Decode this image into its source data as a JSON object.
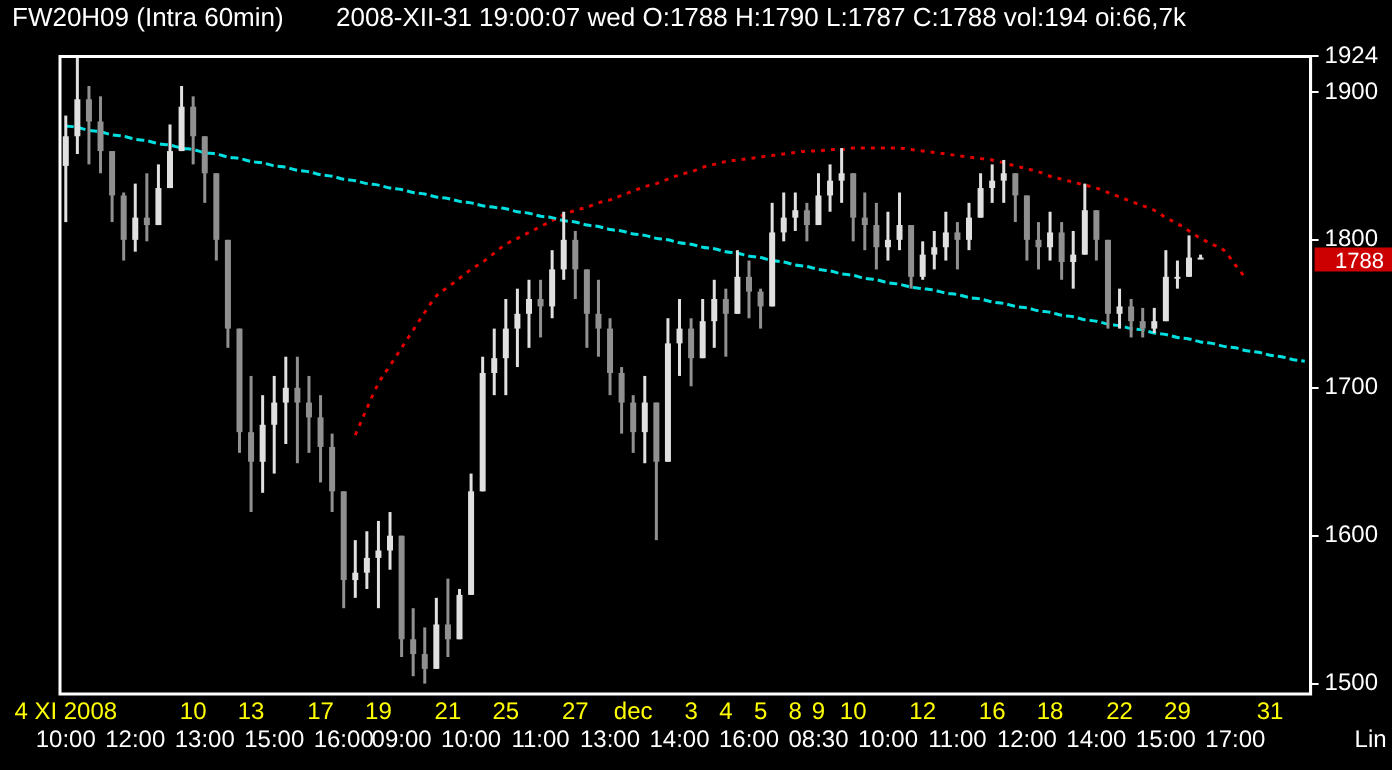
{
  "chart_data": {
    "type": "candlestick",
    "title": "FW20H09 (Intra 60min)",
    "subtitle": "2008-XII-31 19:00:07 wed O:1788 H:1790 L:1787 C:1788 vol:194 oi:66,7k",
    "categories": [
      "4 XI 2008\n10:00",
      null,
      null,
      null,
      null,
      null,
      "\n12:00",
      null,
      null,
      null,
      null,
      "10\n",
      "\n13:00",
      null,
      null,
      null,
      "13\n",
      null,
      "\n15:00",
      null,
      null,
      null,
      "17\n",
      null,
      "\n16:00",
      null,
      null,
      "19\n",
      null,
      "\n09:00",
      null,
      null,
      null,
      "21\n",
      null,
      "\n10:00",
      null,
      null,
      "25\n",
      null,
      null,
      "\n11:00",
      null,
      null,
      "27\n",
      null,
      null,
      "\n13:00",
      null,
      "dec\n",
      null,
      null,
      null,
      "\n14:00",
      "3\n",
      null,
      null,
      "4\n",
      null,
      "\n16:00",
      "5\n",
      null,
      null,
      "8\n",
      null,
      "9\n08:30",
      null,
      null,
      "10\n",
      null,
      null,
      "\n10:00",
      null,
      null,
      "12\n",
      null,
      null,
      "\n11:00",
      null,
      null,
      "16\n",
      null,
      null,
      "\n12:00",
      null,
      "18\n",
      null,
      null,
      null,
      "\n14:00",
      null,
      "22\n",
      null,
      null,
      null,
      "\n15:00",
      "29\n",
      null,
      null,
      null,
      null,
      "\n17:00",
      null,
      null,
      "31\n",
      null,
      null,
      null
    ],
    "colors": [
      "#e0e0e0",
      "#e0e0e0",
      "#909090",
      "#909090",
      "#909090",
      "#909090",
      "#e0e0e0",
      "#909090",
      "#e0e0e0",
      "#e0e0e0",
      "#e0e0e0",
      "#909090",
      "#909090",
      "#909090",
      "#909090",
      "#909090",
      "#909090",
      "#e0e0e0",
      "#e0e0e0",
      "#e0e0e0",
      "#909090",
      "#909090",
      "#909090",
      "#909090",
      "#909090",
      "#e0e0e0",
      "#e0e0e0",
      "#e0e0e0",
      "#e0e0e0",
      "#909090",
      "#909090",
      "#909090",
      "#e0e0e0",
      "#909090",
      "#e0e0e0",
      "#e0e0e0",
      "#e0e0e0",
      "#e0e0e0",
      "#e0e0e0",
      "#e0e0e0",
      "#e0e0e0",
      "#909090",
      "#e0e0e0",
      "#e0e0e0",
      "#909090",
      "#909090",
      "#909090",
      "#909090",
      "#909090",
      "#909090",
      "#e0e0e0",
      "#909090",
      "#e0e0e0",
      "#e0e0e0",
      "#909090",
      "#e0e0e0",
      "#e0e0e0",
      "#909090",
      "#e0e0e0",
      "#909090",
      "#909090",
      "#e0e0e0",
      "#e0e0e0",
      "#e0e0e0",
      "#909090",
      "#e0e0e0",
      "#e0e0e0",
      "#e0e0e0",
      "#909090",
      "#909090",
      "#909090",
      "#e0e0e0",
      "#e0e0e0",
      "#909090",
      "#e0e0e0",
      "#e0e0e0",
      "#e0e0e0",
      "#909090",
      "#e0e0e0",
      "#e0e0e0",
      "#e0e0e0",
      "#e0e0e0",
      "#909090",
      "#909090",
      "#909090",
      "#e0e0e0",
      "#909090",
      "#e0e0e0",
      "#e0e0e0",
      "#909090",
      "#909090",
      "#e0e0e0",
      "#909090",
      "#909090",
      "#e0e0e0",
      "#e0e0e0",
      "#e0e0e0",
      "#e0e0e0",
      "#e0e0e0",
      null,
      null,
      null,
      null,
      null,
      null,
      null,
      null,
      null
    ],
    "ohlc": [
      [
        1850,
        1884,
        1812,
        1870
      ],
      [
        1870,
        1924,
        1858,
        1895
      ],
      [
        1895,
        1904,
        1851,
        1880
      ],
      [
        1880,
        1897,
        1845,
        1860
      ],
      [
        1860,
        1860,
        1812,
        1830
      ],
      [
        1830,
        1832,
        1786,
        1800
      ],
      [
        1800,
        1838,
        1792,
        1815
      ],
      [
        1815,
        1845,
        1799,
        1810
      ],
      [
        1810,
        1851,
        1810,
        1835
      ],
      [
        1835,
        1878,
        1835,
        1860
      ],
      [
        1860,
        1904,
        1860,
        1890
      ],
      [
        1890,
        1897,
        1851,
        1870
      ],
      [
        1870,
        1870,
        1825,
        1845
      ],
      [
        1845,
        1845,
        1786,
        1800
      ],
      [
        1800,
        1800,
        1727,
        1740
      ],
      [
        1740,
        1740,
        1656,
        1670
      ],
      [
        1670,
        1708,
        1616,
        1650
      ],
      [
        1650,
        1695,
        1629,
        1675
      ],
      [
        1675,
        1708,
        1642,
        1690
      ],
      [
        1690,
        1721,
        1662,
        1700
      ],
      [
        1700,
        1721,
        1649,
        1690
      ],
      [
        1690,
        1708,
        1656,
        1680
      ],
      [
        1680,
        1695,
        1636,
        1660
      ],
      [
        1660,
        1669,
        1616,
        1630
      ],
      [
        1630,
        1630,
        1551,
        1570
      ],
      [
        1570,
        1597,
        1558,
        1575
      ],
      [
        1575,
        1603,
        1564,
        1585
      ],
      [
        1585,
        1610,
        1551,
        1590
      ],
      [
        1590,
        1616,
        1577,
        1600
      ],
      [
        1600,
        1600,
        1518,
        1530
      ],
      [
        1530,
        1551,
        1505,
        1520
      ],
      [
        1520,
        1538,
        1500,
        1510
      ],
      [
        1510,
        1558,
        1510,
        1540
      ],
      [
        1540,
        1571,
        1518,
        1530
      ],
      [
        1530,
        1564,
        1530,
        1560
      ],
      [
        1560,
        1642,
        1560,
        1630
      ],
      [
        1630,
        1721,
        1630,
        1710
      ],
      [
        1710,
        1740,
        1695,
        1720
      ],
      [
        1720,
        1760,
        1695,
        1740
      ],
      [
        1740,
        1767,
        1714,
        1750
      ],
      [
        1750,
        1773,
        1727,
        1760
      ],
      [
        1760,
        1773,
        1734,
        1755
      ],
      [
        1755,
        1793,
        1747,
        1780
      ],
      [
        1780,
        1819,
        1773,
        1800
      ],
      [
        1800,
        1806,
        1760,
        1780
      ],
      [
        1780,
        1780,
        1727,
        1750
      ],
      [
        1750,
        1773,
        1721,
        1740
      ],
      [
        1740,
        1747,
        1695,
        1710
      ],
      [
        1710,
        1714,
        1669,
        1690
      ],
      [
        1690,
        1695,
        1656,
        1670
      ],
      [
        1670,
        1708,
        1649,
        1690
      ],
      [
        1690,
        1690,
        1597,
        1650
      ],
      [
        1650,
        1747,
        1650,
        1730
      ],
      [
        1730,
        1760,
        1708,
        1740
      ],
      [
        1740,
        1747,
        1701,
        1720
      ],
      [
        1720,
        1760,
        1720,
        1745
      ],
      [
        1745,
        1773,
        1727,
        1760
      ],
      [
        1760,
        1767,
        1721,
        1750
      ],
      [
        1750,
        1793,
        1750,
        1775
      ],
      [
        1775,
        1786,
        1747,
        1765
      ],
      [
        1765,
        1767,
        1740,
        1755
      ],
      [
        1755,
        1825,
        1755,
        1805
      ],
      [
        1805,
        1832,
        1799,
        1815
      ],
      [
        1815,
        1832,
        1806,
        1820
      ],
      [
        1820,
        1825,
        1799,
        1810
      ],
      [
        1810,
        1845,
        1810,
        1830
      ],
      [
        1830,
        1851,
        1819,
        1840
      ],
      [
        1840,
        1862,
        1825,
        1845
      ],
      [
        1845,
        1845,
        1799,
        1815
      ],
      [
        1815,
        1832,
        1793,
        1810
      ],
      [
        1810,
        1825,
        1780,
        1795
      ],
      [
        1795,
        1819,
        1786,
        1800
      ],
      [
        1800,
        1832,
        1793,
        1810
      ],
      [
        1810,
        1810,
        1767,
        1775
      ],
      [
        1775,
        1799,
        1773,
        1790
      ],
      [
        1790,
        1806,
        1780,
        1795
      ],
      [
        1795,
        1819,
        1786,
        1805
      ],
      [
        1805,
        1812,
        1780,
        1800
      ],
      [
        1800,
        1825,
        1793,
        1815
      ],
      [
        1815,
        1845,
        1815,
        1835
      ],
      [
        1835,
        1851,
        1825,
        1840
      ],
      [
        1840,
        1854,
        1825,
        1845
      ],
      [
        1845,
        1845,
        1812,
        1830
      ],
      [
        1830,
        1830,
        1786,
        1800
      ],
      [
        1800,
        1812,
        1780,
        1795
      ],
      [
        1795,
        1819,
        1786,
        1805
      ],
      [
        1805,
        1812,
        1773,
        1785
      ],
      [
        1785,
        1806,
        1767,
        1790
      ],
      [
        1790,
        1838,
        1790,
        1820
      ],
      [
        1820,
        1820,
        1786,
        1800
      ],
      [
        1800,
        1800,
        1740,
        1750
      ],
      [
        1750,
        1767,
        1740,
        1755
      ],
      [
        1755,
        1760,
        1734,
        1745
      ],
      [
        1745,
        1754,
        1734,
        1740
      ],
      [
        1740,
        1754,
        1737,
        1745
      ],
      [
        1745,
        1793,
        1745,
        1775
      ],
      [
        1775,
        1786,
        1767,
        1775
      ],
      [
        1775,
        1803,
        1775,
        1788
      ],
      [
        1788,
        1790,
        1787,
        1788
      ],
      null,
      null,
      null,
      null,
      null,
      null,
      null,
      null,
      null
    ],
    "series": [
      {
        "type": "line",
        "color": "#00e0e0",
        "line_style": "dashed",
        "values": [
          1877,
          1876,
          1874,
          1873,
          1871,
          1870,
          1868,
          1867,
          1865,
          1864,
          1862,
          1861,
          1859,
          1858,
          1856,
          1855,
          1853,
          1852,
          1850,
          1849,
          1847,
          1846,
          1844,
          1843,
          1841,
          1840,
          1838,
          1837,
          1835,
          1834,
          1832,
          1831,
          1829,
          1828,
          1826,
          1825,
          1823,
          1822,
          1821,
          1819,
          1818,
          1816,
          1815,
          1813,
          1812,
          1810,
          1809,
          1807,
          1806,
          1804,
          1803,
          1801,
          1800,
          1798,
          1797,
          1795,
          1794,
          1792,
          1791,
          1789,
          1788,
          1786,
          1785,
          1783,
          1782,
          1780,
          1779,
          1777,
          1776,
          1774,
          1773,
          1771,
          1770,
          1768,
          1767,
          1766,
          1764,
          1763,
          1761,
          1760,
          1758,
          1757,
          1755,
          1754,
          1752,
          1751,
          1749,
          1748,
          1746,
          1745,
          1743,
          1742,
          1740,
          1739,
          1737,
          1736,
          1734,
          1733,
          1731,
          1730,
          1728,
          1727,
          1725,
          1724,
          1722,
          1721,
          1719,
          1718
        ]
      },
      {
        "type": "line",
        "color": "#e00000",
        "line_style": "dotted",
        "values": [
          null,
          null,
          null,
          null,
          null,
          null,
          null,
          null,
          null,
          null,
          null,
          null,
          null,
          null,
          null,
          null,
          null,
          null,
          null,
          null,
          null,
          null,
          null,
          null,
          null,
          1668,
          1686,
          1703,
          1715,
          1727,
          1739,
          1751,
          1762,
          1768,
          1774,
          1780,
          1785,
          1791,
          1797,
          1801,
          1805,
          1809,
          1813,
          1817,
          1820,
          1822,
          1825,
          1827,
          1830,
          1833,
          1836,
          1838,
          1841,
          1844,
          1846,
          1849,
          1851,
          1853,
          1854,
          1855,
          1856,
          1857,
          1858,
          1859,
          1860,
          1860,
          1861,
          1861,
          1862,
          1862,
          1862,
          1862,
          1862,
          1861,
          1860,
          1859,
          1858,
          1857,
          1856,
          1855,
          1854,
          1852,
          1850,
          1848,
          1846,
          1843,
          1841,
          1839,
          1837,
          1835,
          1832,
          1829,
          1826,
          1823,
          1820,
          1815,
          1811,
          1806,
          1801,
          1797,
          1793,
          1783,
          1773,
          null,
          null,
          null,
          null,
          null
        ]
      }
    ],
    "ylim": [
      1493,
      1924
    ],
    "yticks": [
      1500,
      1600,
      1700,
      1800,
      1900,
      1924
    ],
    "annotations": [
      "1788",
      "Lin"
    ],
    "grid": false,
    "legend": false,
    "marker": "none"
  }
}
